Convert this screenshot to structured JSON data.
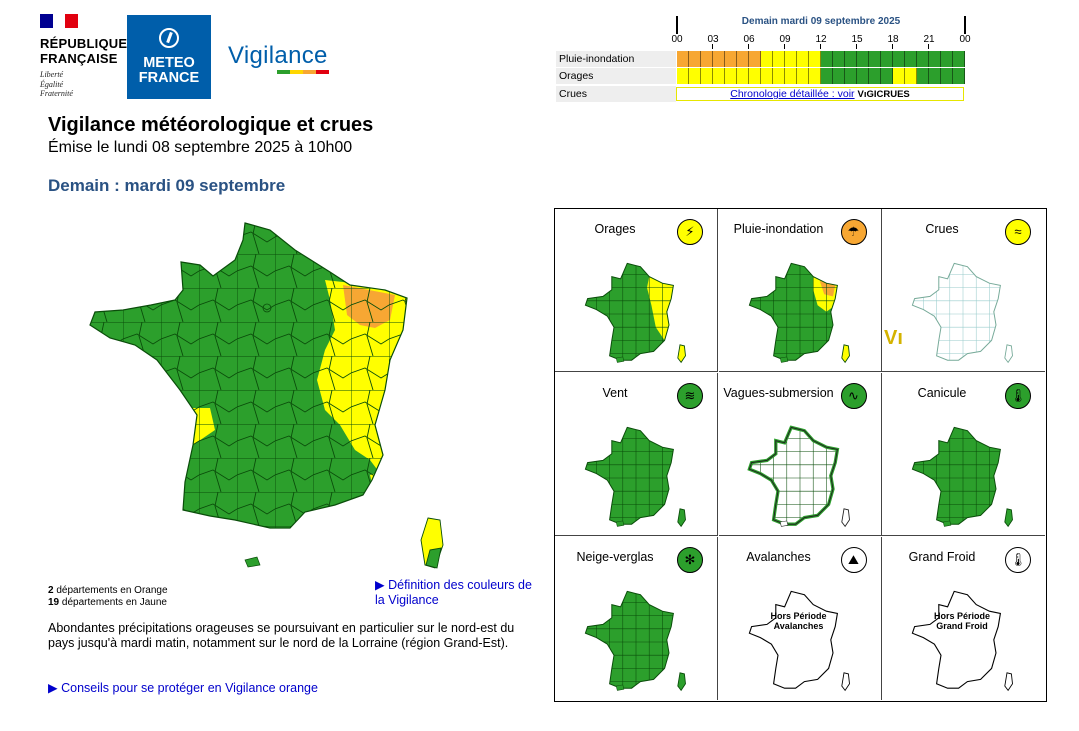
{
  "header": {
    "republique_line1": "RÉPUBLIQUE",
    "republique_line2": "FRANÇAISE",
    "motto1": "Liberté",
    "motto2": "Égalité",
    "motto3": "Fraternité",
    "meteo_line1": "METEO",
    "meteo_line2": "FRANCE",
    "vigilance_logo": "Vigilance"
  },
  "chronology": {
    "title": "Demain mardi 09 septembre 2025",
    "hours": [
      "00",
      "03",
      "06",
      "09",
      "12",
      "15",
      "18",
      "21",
      "00"
    ],
    "rows": [
      {
        "label": "Pluie-inondation",
        "segments": [
          "#f7a733",
          "#f7a733",
          "#f7a733",
          "#f7a733",
          "#f7a733",
          "#f7a733",
          "#f7a733",
          "#ffff00",
          "#ffff00",
          "#ffff00",
          "#ffff00",
          "#ffff00",
          "#2c9f2c",
          "#2c9f2c",
          "#2c9f2c",
          "#2c9f2c",
          "#2c9f2c",
          "#2c9f2c",
          "#2c9f2c",
          "#2c9f2c",
          "#2c9f2c",
          "#2c9f2c",
          "#2c9f2c",
          "#2c9f2c"
        ]
      },
      {
        "label": "Orages",
        "segments": [
          "#ffff00",
          "#ffff00",
          "#ffff00",
          "#ffff00",
          "#ffff00",
          "#ffff00",
          "#ffff00",
          "#ffff00",
          "#ffff00",
          "#ffff00",
          "#ffff00",
          "#ffff00",
          "#2c9f2c",
          "#2c9f2c",
          "#2c9f2c",
          "#2c9f2c",
          "#2c9f2c",
          "#2c9f2c",
          "#ffff00",
          "#ffff00",
          "#2c9f2c",
          "#2c9f2c",
          "#2c9f2c",
          "#2c9f2c"
        ]
      },
      {
        "label": "Crues"
      }
    ],
    "crues_link": "Chronologie détaillée : voir",
    "crues_logo_text": "VıGICRUES"
  },
  "main": {
    "title": "Vigilance météorologique et crues",
    "subtitle": "Émise le lundi 08 septembre 2025 à 10h00",
    "day": "Demain : mardi 09 septembre"
  },
  "counts": {
    "orange_num": "2",
    "orange_text": " départements en Orange",
    "yellow_num": "19",
    "yellow_text": " départements en Jaune"
  },
  "definition_link": "▶ Définition des couleurs de la Vigilance",
  "description": "Abondantes précipitations orageuses se poursuivant en particulier sur le nord-est du pays jusqu'à mardi matin, notamment sur le nord de la Lorraine (région Grand-Est).",
  "advice_link": "▶ Conseils pour se protéger en Vigilance orange",
  "phenomena": [
    {
      "label": "Orages",
      "icon": "lightning-icon",
      "icon_color": "#ffff00",
      "map": "orages"
    },
    {
      "label": "Pluie-inondation",
      "icon": "rain-icon",
      "icon_color": "#f7a733",
      "map": "pluie"
    },
    {
      "label": "Crues",
      "icon": "waves-icon",
      "icon_color": "#ffff00",
      "map": "crues"
    },
    {
      "label": "Vent",
      "icon": "wind-icon",
      "icon_color": "#2c9f2c",
      "map": "green"
    },
    {
      "label": "Vagues-submersion",
      "icon": "wave-icon",
      "icon_color": "#2c9f2c",
      "map": "vagues"
    },
    {
      "label": "Canicule",
      "icon": "thermometer-icon",
      "icon_color": "#2c9f2c",
      "map": "green"
    },
    {
      "label": "Neige-verglas",
      "icon": "snowflake-icon",
      "icon_color": "#2c9f2c",
      "map": "green"
    },
    {
      "label": "Avalanches",
      "icon": "avalanche-icon",
      "icon_color": "#ffffff",
      "map": "off",
      "off_text1": "Hors Période",
      "off_text2": "Avalanches"
    },
    {
      "label": "Grand Froid",
      "icon": "thermometer-cold-icon",
      "icon_color": "#ffffff",
      "map": "off",
      "off_text1": "Hors Période",
      "off_text2": "Grand Froid"
    }
  ],
  "colors": {
    "green": "#2c9f2c",
    "yellow": "#ffff00",
    "orange": "#f7a733",
    "title_blue": "#2a5283",
    "link_blue": "#0000cc"
  }
}
